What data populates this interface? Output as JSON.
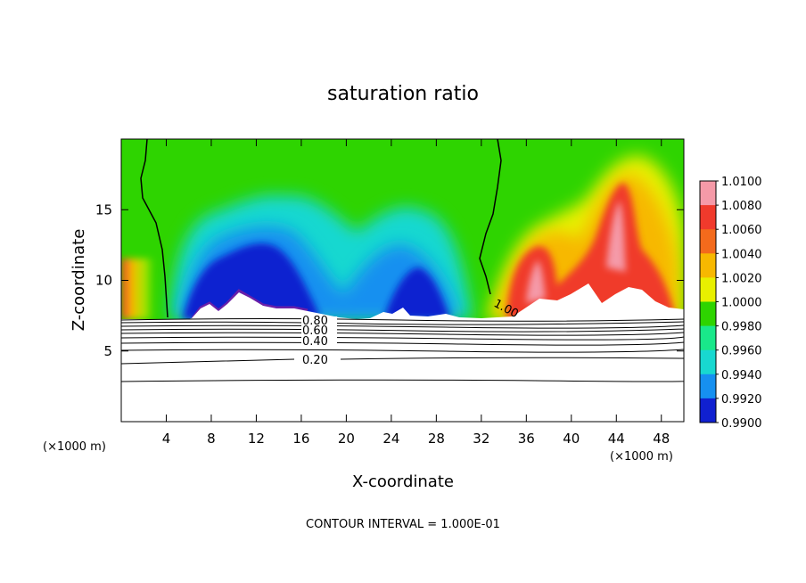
{
  "chart_data": {
    "type": "heatmap",
    "title": "saturation ratio",
    "xlabel": "X-coordinate",
    "ylabel": "Z-coordinate",
    "x_unit_left": "(×1000 m)",
    "x_unit_right": "(×1000 m)",
    "footer": "CONTOUR INTERVAL = 1.000E-01",
    "xlim": [
      0,
      50
    ],
    "ylim": [
      0,
      20
    ],
    "x_ticks": [
      "4",
      "8",
      "12",
      "16",
      "20",
      "24",
      "28",
      "32",
      "36",
      "40",
      "44",
      "48"
    ],
    "y_ticks": [
      "5",
      "10",
      "15"
    ],
    "colorbar": {
      "range": [
        0.99,
        1.01
      ],
      "ticks": [
        "1.0100",
        "1.0080",
        "1.0060",
        "1.0040",
        "1.0020",
        "1.0000",
        "0.9980",
        "0.9960",
        "0.9940",
        "0.9920",
        "0.9900"
      ],
      "colors": [
        "#f59aa8",
        "#f03a2c",
        "#f36a1c",
        "#f7b800",
        "#e8f000",
        "#2ed400",
        "#19e88a",
        "#18d8d0",
        "#1690f0",
        "#1020d0",
        "#6a1fa8"
      ]
    },
    "contour_labels": [
      "0.80",
      "0.60",
      "0.40",
      "0.20",
      "1.00"
    ],
    "cloud_base_z": 7.3
  }
}
